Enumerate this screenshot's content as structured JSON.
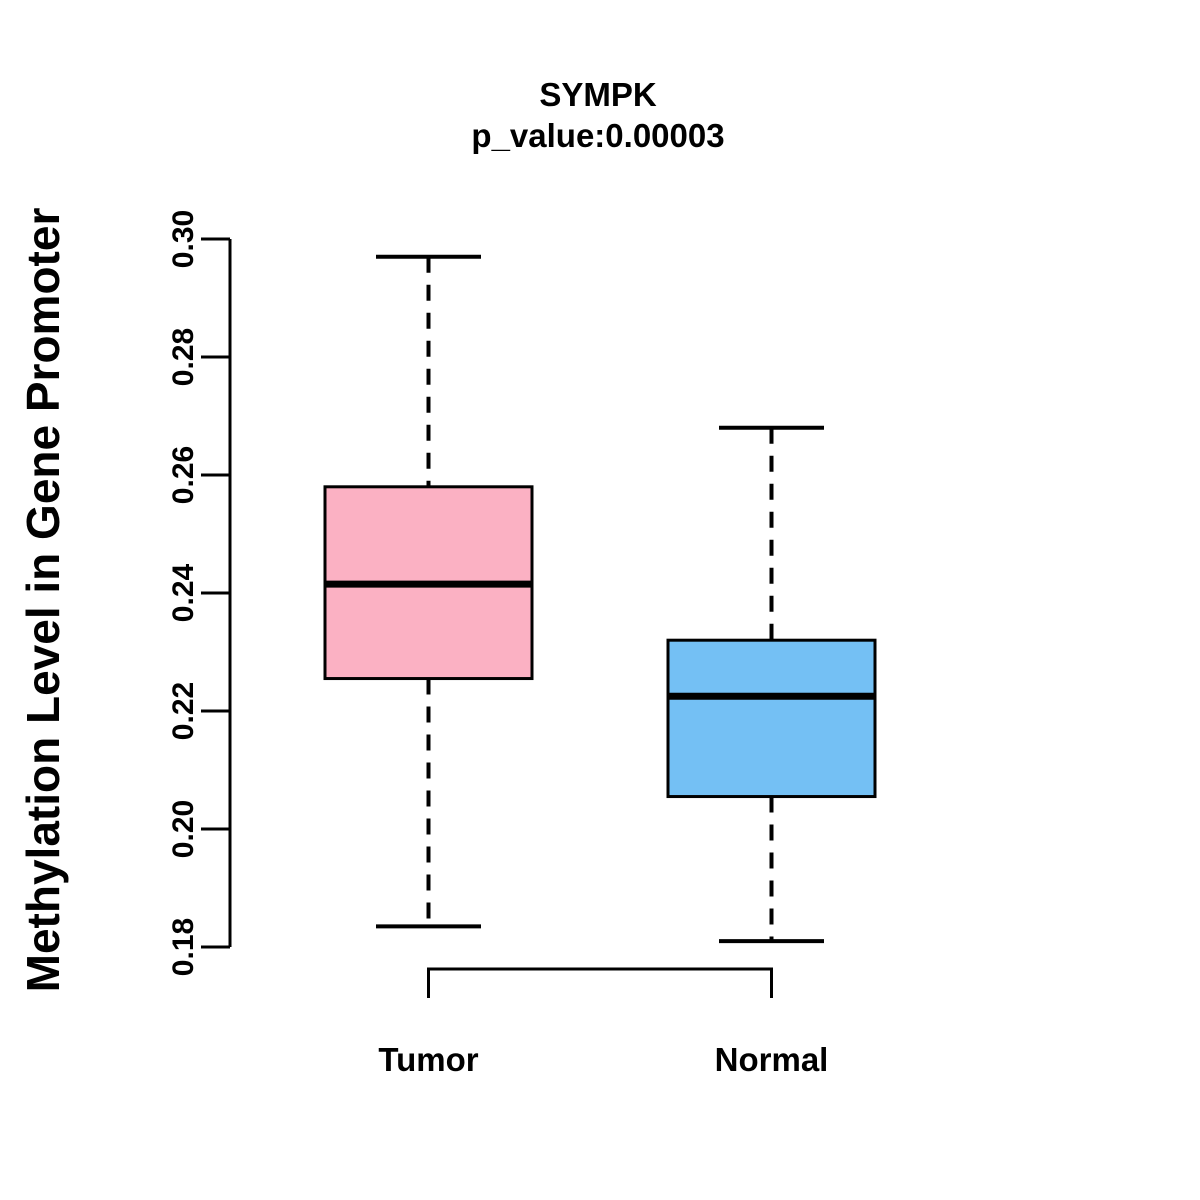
{
  "chart_data": {
    "type": "boxplot",
    "title": "SYMPK",
    "subtitle": "p_value:0.00003",
    "ylabel": "Methylation Level in Gene Promoter",
    "xlabel": "",
    "categories": [
      "Tumor",
      "Normal"
    ],
    "yticks": [
      0.18,
      0.2,
      0.22,
      0.24,
      0.26,
      0.28,
      0.3
    ],
    "ytick_labels": [
      "0.18",
      "0.20",
      "0.22",
      "0.24",
      "0.26",
      "0.28",
      "0.30"
    ],
    "ylim": [
      0.18,
      0.3
    ],
    "grid": false,
    "legend": "none",
    "orientation": "vertical",
    "series": [
      {
        "name": "Tumor",
        "color": "#FBB1C3",
        "whisker_low": 0.1835,
        "q1": 0.2255,
        "median": 0.2415,
        "q3": 0.258,
        "whisker_high": 0.297
      },
      {
        "name": "Normal",
        "color": "#74C0F4",
        "whisker_low": 0.181,
        "q1": 0.2055,
        "median": 0.2225,
        "q3": 0.232,
        "whisker_high": 0.268
      }
    ],
    "stroke_color": "#000000",
    "comparison_bracket": {
      "from": "Tumor",
      "to": "Normal"
    }
  }
}
